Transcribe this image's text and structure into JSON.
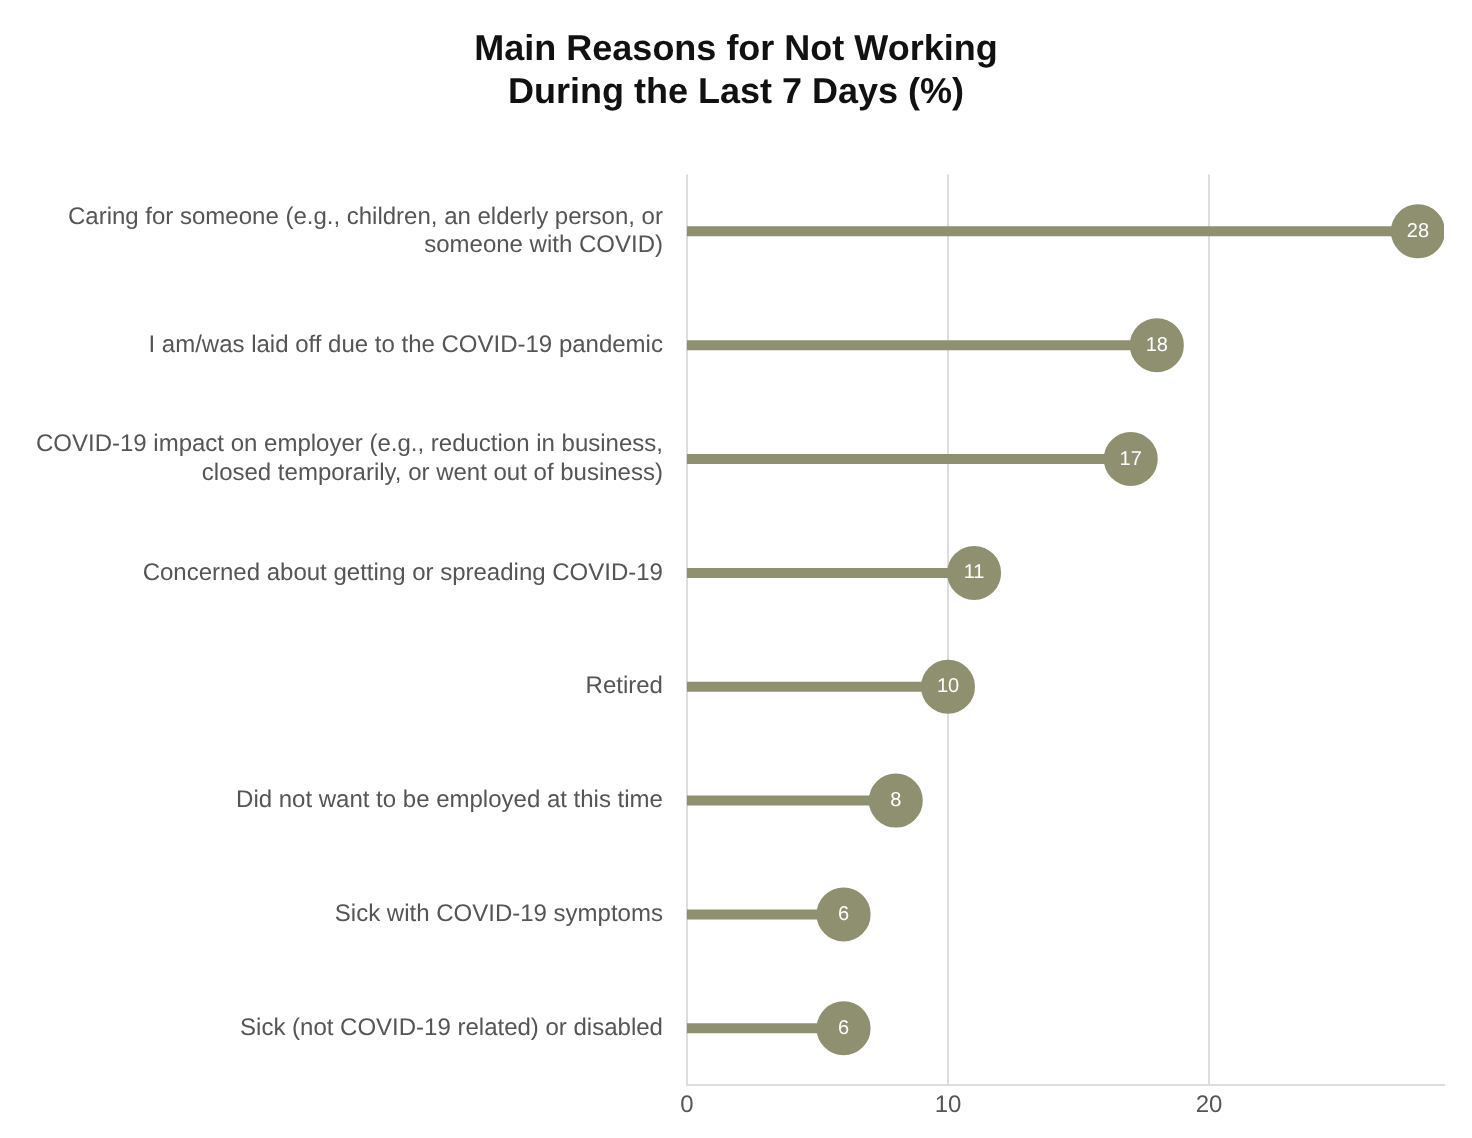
{
  "chart_data": {
    "type": "lollipop",
    "orientation": "horizontal",
    "title": "Main Reasons for Not Working\nDuring the Last 7 Days (%)",
    "categories": [
      "Caring for someone (e.g., children, an elderly person, or someone with COVID)",
      "I am/was laid off due to the COVID-19 pandemic",
      "COVID-19 impact on employer (e.g., reduction in business, closed temporarily, or went out of business)",
      "Concerned about getting or spreading COVID-19",
      "Retired",
      "Did not want to be employed at this time",
      "Sick with COVID-19 symptoms",
      "Sick (not COVID-19 related) or disabled"
    ],
    "values": [
      28,
      18,
      17,
      11,
      10,
      8,
      6,
      6
    ],
    "color": "#8f9070",
    "data_labels": true,
    "grid": "x",
    "xlim": [
      0,
      29
    ],
    "xticks": [
      0,
      10,
      20
    ]
  }
}
